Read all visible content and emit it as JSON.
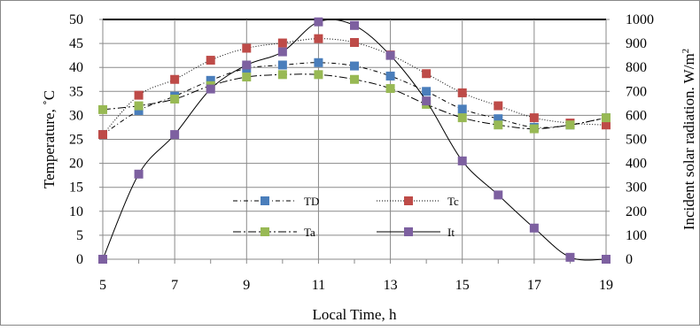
{
  "chart_data": {
    "type": "line",
    "title": "",
    "xlabel": "Local Time, h",
    "ylabel": "Temperature, ˚C",
    "y2label": "Incident solar radiation. W/m",
    "y2label_superscript": "2",
    "x_ticks": [
      "5",
      "7",
      "9",
      "11",
      "13",
      "15",
      "17",
      "19"
    ],
    "y_ticks": [
      "0",
      "5",
      "10",
      "15",
      "20",
      "25",
      "30",
      "35",
      "40",
      "45",
      "50"
    ],
    "y2_ticks": [
      "0",
      "100",
      "200",
      "300",
      "400",
      "500",
      "600",
      "700",
      "800",
      "900",
      "1000"
    ],
    "xlim": [
      5,
      19
    ],
    "ylim": [
      0,
      50
    ],
    "y2lim": [
      0,
      1000
    ],
    "grid": true,
    "legend_position": "center-bottom, inside plot area",
    "x": [
      5,
      6,
      7,
      8,
      9,
      10,
      11,
      12,
      13,
      14,
      15,
      16,
      17,
      18,
      19
    ],
    "series": [
      {
        "name": "TD",
        "axis": "left",
        "color": "#4a7ebb",
        "line_style": "dash-dot",
        "values": [
          26,
          31,
          34,
          37.3,
          39.8,
          40.5,
          41,
          40.3,
          38.2,
          35,
          31.3,
          29.3,
          27.5,
          28,
          29.5
        ]
      },
      {
        "name": "Tc",
        "axis": "left",
        "color": "#be4b48",
        "line_style": "dotted",
        "values": [
          26,
          34.2,
          37.5,
          41.5,
          44,
          45.1,
          46,
          45.2,
          42.6,
          38.7,
          34.7,
          32,
          29.5,
          28.4,
          28
        ]
      },
      {
        "name": "Ta",
        "axis": "left",
        "color": "#98b954",
        "line_style": "long-dash-dot",
        "values": [
          31.2,
          32,
          33.4,
          36.2,
          38,
          38.5,
          38.5,
          37.5,
          35.6,
          32.3,
          29.5,
          28,
          27.2,
          28,
          29.5
        ]
      },
      {
        "name": "It",
        "axis": "right",
        "color": "#7d60a0",
        "line_color": "#000000",
        "line_style": "solid",
        "values": [
          0,
          355,
          520,
          710,
          810,
          865,
          990,
          975,
          850,
          660,
          410,
          268,
          130,
          8,
          0
        ]
      }
    ]
  }
}
